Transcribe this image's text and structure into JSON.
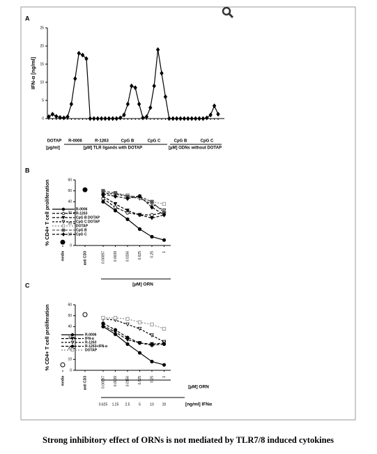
{
  "caption": "Strong inhibitory effect of ORNs is not mediated by TLR7/8 induced cytokines",
  "chart_data": [
    {
      "type": "line",
      "panel": "A",
      "y_label": "IFN-α [ng/ml]",
      "ylim": [
        0,
        25
      ],
      "yticks": [
        0,
        5,
        10,
        15,
        20,
        25
      ],
      "group_labels": [
        "DOTAP",
        "R-0006",
        "R-1263",
        "CpG B",
        "CpG C",
        "CpG B",
        "CpG C"
      ],
      "unit_labels": [
        "[µg/ml]",
        "[µM] TLR ligands with DOTAP",
        "[µM] ODNs without DOTAP"
      ],
      "categories": [
        null,
        null,
        null,
        null,
        null,
        null,
        null,
        null,
        null,
        null,
        null,
        null,
        null,
        null,
        null,
        null,
        null,
        null,
        null,
        null,
        null,
        null,
        null,
        null,
        null,
        null,
        null,
        null,
        null,
        null,
        null,
        null,
        null,
        null,
        null,
        null,
        null,
        null,
        null,
        null,
        null,
        null,
        null,
        null,
        null,
        null
      ],
      "series": [
        {
          "color": "#000000",
          "marker": "diamond",
          "filled": true,
          "values": [
            0.5,
            1.2,
            0.6,
            0.3,
            0.2,
            0.5,
            4,
            11,
            18,
            17.5,
            16.5,
            0,
            0,
            0,
            0,
            0,
            0,
            0,
            0,
            0.2,
            1,
            4,
            9,
            8.5,
            4,
            0.2,
            0.5,
            3,
            9,
            19,
            12.5,
            6,
            0,
            0,
            0,
            0,
            0,
            0,
            0,
            0,
            0,
            0,
            0.2,
            1,
            3.5,
            1.2
          ]
        }
      ]
    },
    {
      "type": "line",
      "panel": "B",
      "y_label": "% CD4+ T cell proliferation",
      "x_label": "[µM] ORN",
      "ylim": [
        0,
        60
      ],
      "yticks": [
        0,
        10,
        20,
        30,
        40,
        50,
        60
      ],
      "categories": [
        "media",
        "anti CD3",
        "0.00097",
        "0.0039",
        "0.0156",
        "0.625",
        "0.25",
        "1"
      ],
      "controls": [
        3,
        51
      ],
      "series": [
        {
          "name": "R-0006",
          "color": "#000000",
          "marker": "circle",
          "filled": true,
          "dash": "",
          "values": [
            null,
            null,
            40,
            32,
            24,
            15,
            8,
            5
          ]
        },
        {
          "name": "R-1263",
          "color": "#000000",
          "marker": "circle",
          "filled": false,
          "dash": "4 2",
          "values": [
            null,
            null,
            43,
            35,
            30,
            28,
            28,
            30
          ]
        },
        {
          "name": "CpG B DOTAP",
          "color": "#000000",
          "marker": "tri",
          "filled": true,
          "dash": "4 2",
          "values": [
            null,
            null,
            45,
            38,
            32,
            28,
            25,
            28
          ]
        },
        {
          "name": "CpG C DOTAP",
          "color": "#000000",
          "marker": "tri",
          "filled": false,
          "dash": "3 2",
          "values": [
            null,
            null,
            48,
            47,
            45,
            43,
            38,
            32
          ]
        },
        {
          "name": "DOTAP",
          "color": "#888888",
          "marker": "square",
          "filled": false,
          "dash": "2 2",
          "values": [
            null,
            null,
            48,
            48,
            46,
            44,
            40,
            38
          ]
        },
        {
          "name": "CpG B",
          "color": "#555555",
          "marker": "square",
          "filled": true,
          "dash": "4 2",
          "values": [
            null,
            null,
            50,
            48,
            45,
            45,
            40,
            30
          ]
        },
        {
          "name": "CpG C",
          "color": "#000000",
          "marker": "diamond",
          "filled": true,
          "dash": "4 2",
          "values": [
            null,
            null,
            47,
            45,
            43,
            45,
            35,
            28
          ]
        }
      ]
    },
    {
      "type": "line",
      "panel": "C",
      "y_label": "% CD4+ T cell proliferation",
      "x_label": "[µM] ORN",
      "x2_label": "[ng/ml] IFNα",
      "ylim": [
        0,
        60
      ],
      "yticks": [
        0,
        10,
        20,
        30,
        40,
        50,
        60
      ],
      "categories": [
        "media",
        "anti CD3",
        "0.00097",
        "0.0039",
        "0.0156",
        "0.625",
        "0.25",
        "1"
      ],
      "categories2": [
        null,
        null,
        "0.625",
        "1.25",
        "2.5",
        "5",
        "10",
        "20"
      ],
      "controls": [
        5,
        51
      ],
      "series": [
        {
          "name": "R-0006",
          "color": "#000000",
          "marker": "circle",
          "filled": true,
          "dash": "",
          "values": [
            null,
            null,
            40,
            33,
            24,
            16,
            8,
            5
          ]
        },
        {
          "name": "IFN-α",
          "color": "#000000",
          "marker": "tri",
          "filled": true,
          "dash": "4 2",
          "values": [
            null,
            null,
            41,
            35,
            28,
            25,
            24,
            25
          ]
        },
        {
          "name": "R-1263",
          "color": "#000000",
          "marker": "tri",
          "filled": false,
          "dash": "3 2",
          "values": [
            null,
            null,
            47,
            46,
            42,
            38,
            32,
            26
          ]
        },
        {
          "name": "R-1263+IFN-α",
          "color": "#000000",
          "marker": "circle",
          "filled": true,
          "dash": "4 2",
          "values": [
            null,
            null,
            43,
            37,
            30,
            25,
            23,
            24
          ]
        },
        {
          "name": "DOTAP",
          "color": "#888888",
          "marker": "square",
          "filled": false,
          "dash": "2 2",
          "values": [
            null,
            null,
            48,
            48,
            47,
            44,
            42,
            38
          ]
        }
      ]
    }
  ]
}
